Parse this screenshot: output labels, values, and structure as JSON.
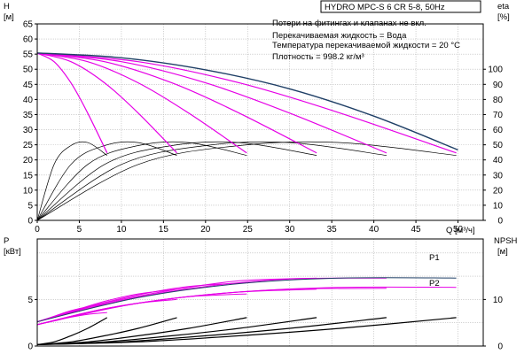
{
  "title": "HYDRO MPC-S 6 CR 5-8, 50Hz",
  "notes": [
    "Потери на фитингах и клапанах не вкл.",
    "Перекачиваемая жидкость = Вода",
    "Температура перекачиваемой жидкости = 20 °C",
    "Плотность = 998.2 кг/м³"
  ],
  "colors": {
    "envelope": "#1f3f66",
    "head_curve": "#e600e6",
    "efficiency_curve": "#000000",
    "npsh_curve": "#000000",
    "frame": "#000000",
    "grid": "#b9b9b9"
  },
  "chart_data": [
    {
      "name": "head-efficiency",
      "type": "line",
      "grid": true,
      "x": {
        "label": "Q [м³/ч]",
        "range": [
          0,
          53
        ],
        "ticks": [
          "0",
          "5",
          "10",
          "15",
          "20",
          "25",
          "30",
          "35",
          "40",
          "45",
          "50"
        ]
      },
      "y_left": {
        "label_top": "H",
        "label_unit": "[м]",
        "range": [
          0,
          65
        ],
        "ticks": [
          "0",
          "5",
          "10",
          "15",
          "20",
          "25",
          "30",
          "35",
          "40",
          "45",
          "50",
          "55",
          "60",
          "65"
        ]
      },
      "y_right": {
        "label_top": "eta",
        "label_unit": "[%]",
        "range": [
          0,
          130
        ],
        "ticks": [
          "0",
          "10",
          "20",
          "30",
          "40",
          "50",
          "60",
          "70",
          "80",
          "90",
          "100"
        ]
      },
      "head_curves": [
        {
          "pumps": 1,
          "x": [
            0,
            2,
            4,
            6,
            8.3
          ],
          "y": [
            55.3,
            52.5,
            45.5,
            35.5,
            22.3
          ]
        },
        {
          "pumps": 2,
          "x": [
            0,
            4,
            8,
            12,
            16.6
          ],
          "y": [
            55.3,
            52.5,
            45.5,
            35.5,
            22.3
          ]
        },
        {
          "pumps": 3,
          "x": [
            0,
            6,
            12,
            18,
            24.9
          ],
          "y": [
            55.3,
            52.5,
            45.5,
            35.5,
            22.3
          ]
        },
        {
          "pumps": 4,
          "x": [
            0,
            8,
            16,
            24,
            33.2
          ],
          "y": [
            55.3,
            52.5,
            45.5,
            35.5,
            22.3
          ]
        },
        {
          "pumps": 5,
          "x": [
            0,
            10,
            20,
            30,
            41.5
          ],
          "y": [
            55.3,
            52.5,
            45.5,
            35.5,
            22.3
          ]
        },
        {
          "pumps": 6,
          "x": [
            0,
            12,
            24,
            36,
            49.8
          ],
          "y": [
            55.3,
            52.5,
            45.5,
            35.5,
            22.3
          ]
        }
      ],
      "envelope": {
        "x": [
          0,
          10,
          20,
          30,
          40,
          50
        ],
        "y": [
          55.4,
          53.8,
          49.8,
          43.5,
          34.5,
          23.3
        ]
      },
      "efficiency_curves": [
        {
          "pumps": 1,
          "x": [
            0,
            2,
            4,
            6,
            8.3
          ],
          "y": [
            0,
            37,
            49.5,
            51.5,
            43
          ]
        },
        {
          "pumps": 2,
          "x": [
            0,
            4,
            8,
            12,
            16.6
          ],
          "y": [
            0,
            37,
            49.5,
            51.5,
            43
          ]
        },
        {
          "pumps": 3,
          "x": [
            0,
            6,
            12,
            18,
            24.9
          ],
          "y": [
            0,
            37,
            49.5,
            51.5,
            43
          ]
        },
        {
          "pumps": 4,
          "x": [
            0,
            8,
            16,
            24,
            33.2
          ],
          "y": [
            0,
            37,
            49.5,
            51.5,
            43
          ]
        },
        {
          "pumps": 5,
          "x": [
            0,
            10,
            20,
            30,
            41.5
          ],
          "y": [
            0,
            37,
            49.5,
            51.5,
            43
          ]
        },
        {
          "pumps": 6,
          "x": [
            0,
            12,
            24,
            36,
            49.8
          ],
          "y": [
            0,
            37,
            49.5,
            51.5,
            43
          ]
        }
      ]
    },
    {
      "name": "power-npsh",
      "type": "line",
      "grid": true,
      "x": {
        "range": [
          0,
          53
        ]
      },
      "y_left": {
        "label_top": "P",
        "label_unit": "[кВт]",
        "range": [
          0,
          11.5
        ],
        "ticks": [
          "0",
          "5"
        ]
      },
      "y_right": {
        "label_top": "NPSH",
        "label_unit": "[м]",
        "range": [
          0,
          23
        ],
        "ticks": [
          "0",
          "10"
        ]
      },
      "series_labels": [
        "P1",
        "P2"
      ],
      "p1_curves": [
        {
          "pumps": 1,
          "x": [
            0,
            2,
            4,
            6,
            8.3
          ],
          "y": [
            2.6,
            3.2,
            3.8,
            4.2,
            4.5
          ]
        },
        {
          "pumps": 2,
          "x": [
            0,
            4,
            8,
            12,
            16.6
          ],
          "y": [
            2.6,
            3.7,
            4.8,
            5.6,
            6.1
          ]
        },
        {
          "pumps": 3,
          "x": [
            0,
            6,
            12,
            18,
            24.9
          ],
          "y": [
            2.6,
            4.2,
            5.5,
            6.4,
            6.8
          ]
        },
        {
          "pumps": 4,
          "x": [
            0,
            8,
            16,
            24,
            33.2
          ],
          "y": [
            2.6,
            4.6,
            6.0,
            7.0,
            7.3
          ]
        },
        {
          "pumps": 5,
          "x": [
            0,
            10,
            20,
            30,
            41.5
          ],
          "y": [
            2.6,
            4.9,
            6.4,
            7.2,
            7.3
          ]
        },
        {
          "pumps": 6,
          "x": [
            0,
            12,
            24,
            36,
            49.8
          ],
          "y": [
            2.6,
            5.2,
            6.7,
            7.3,
            7.3
          ]
        }
      ],
      "p2_curves": [
        {
          "pumps": 1,
          "x": [
            0,
            2,
            4,
            6,
            8.3
          ],
          "y": [
            2.3,
            2.7,
            3.1,
            3.4,
            3.6
          ]
        },
        {
          "pumps": 2,
          "x": [
            0,
            4,
            8,
            12,
            16.6
          ],
          "y": [
            2.3,
            3.2,
            4.0,
            4.6,
            5.0
          ]
        },
        {
          "pumps": 3,
          "x": [
            0,
            6,
            12,
            18,
            24.9
          ],
          "y": [
            2.3,
            3.6,
            4.6,
            5.3,
            5.6
          ]
        },
        {
          "pumps": 4,
          "x": [
            0,
            8,
            16,
            24,
            33.2
          ],
          "y": [
            2.3,
            4.0,
            5.1,
            5.8,
            6.1
          ]
        },
        {
          "pumps": 5,
          "x": [
            0,
            10,
            20,
            30,
            41.5
          ],
          "y": [
            2.3,
            4.3,
            5.5,
            6.1,
            6.2
          ]
        },
        {
          "pumps": 6,
          "x": [
            0,
            12,
            24,
            36,
            49.8
          ],
          "y": [
            2.3,
            4.6,
            5.8,
            6.3,
            6.3
          ]
        }
      ],
      "npsh_curves": [
        {
          "pumps": 1,
          "x": [
            0,
            2,
            4,
            6,
            8.3
          ],
          "y": [
            0.3,
            0.9,
            2.2,
            3.8,
            6.1
          ]
        },
        {
          "pumps": 2,
          "x": [
            0,
            4,
            8,
            12,
            16.6
          ],
          "y": [
            0.3,
            0.9,
            2.2,
            3.8,
            6.1
          ]
        },
        {
          "pumps": 3,
          "x": [
            0,
            6,
            12,
            18,
            24.9
          ],
          "y": [
            0.3,
            0.9,
            2.2,
            3.8,
            6.1
          ]
        },
        {
          "pumps": 4,
          "x": [
            0,
            8,
            16,
            24,
            33.2
          ],
          "y": [
            0.3,
            0.9,
            2.2,
            3.8,
            6.1
          ]
        },
        {
          "pumps": 5,
          "x": [
            0,
            10,
            20,
            30,
            41.5
          ],
          "y": [
            0.3,
            0.9,
            2.2,
            3.8,
            6.1
          ]
        },
        {
          "pumps": 6,
          "x": [
            0,
            12,
            24,
            36,
            49.8
          ],
          "y": [
            0.3,
            0.9,
            2.2,
            3.8,
            6.1
          ]
        }
      ]
    }
  ]
}
